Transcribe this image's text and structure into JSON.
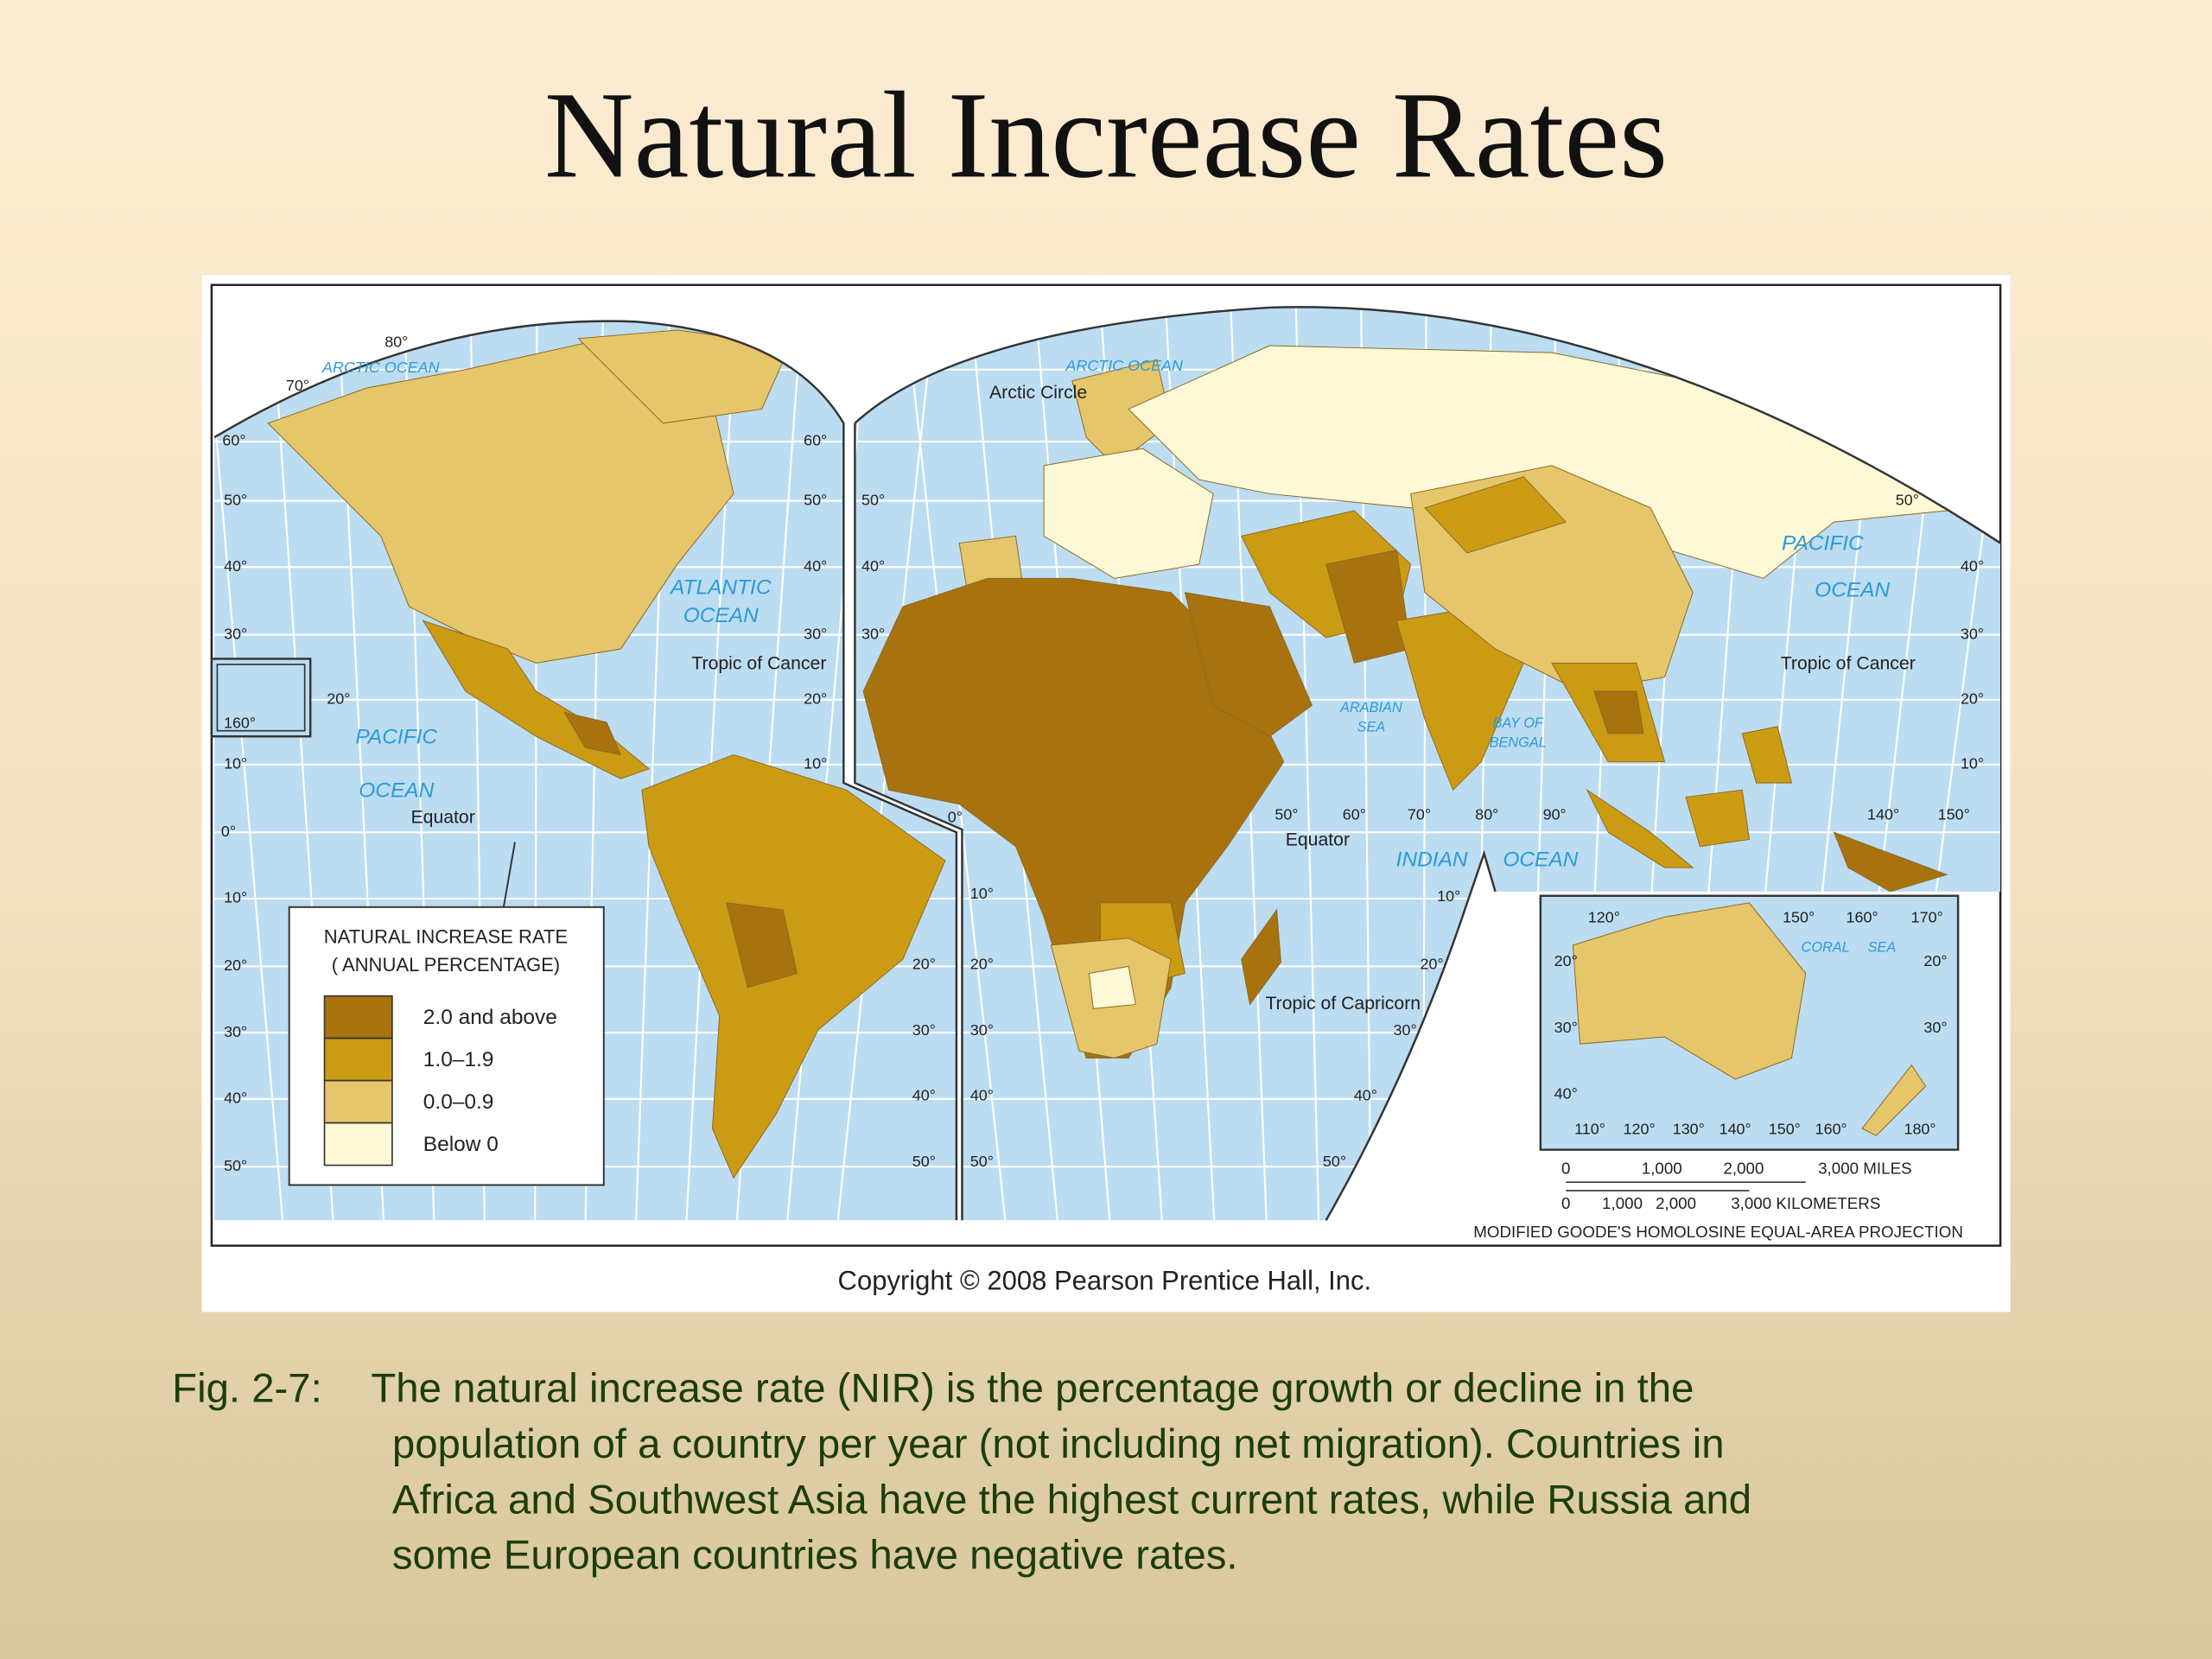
{
  "title": "Natural Increase Rates",
  "map": {
    "oceans": [
      "ARCTIC OCEAN",
      "ARCTIC OCEAN",
      "ATLANTIC",
      "OCEAN",
      "PACIFIC",
      "OCEAN",
      "PACIFIC",
      "OCEAN",
      "ARABIAN",
      "SEA",
      "BAY OF",
      "BENGAL",
      "INDIAN",
      "OCEAN",
      "CORAL",
      "SEA"
    ],
    "reference_lines": [
      "Arctic Circle",
      "Tropic of Cancer",
      "Tropic of Cancer",
      "Equator",
      "Equator",
      "Tropic of Capricorn"
    ],
    "degrees": [
      "80°",
      "70°",
      "60°",
      "50°",
      "40°",
      "30°",
      "20°",
      "160°",
      "10°",
      "0°",
      "10°",
      "20°",
      "30°",
      "40°",
      "50°",
      "60°",
      "50°",
      "40°",
      "30°",
      "20°",
      "10°",
      "20°",
      "30°",
      "40°",
      "50°",
      "50°",
      "40°",
      "30°",
      "0°",
      "10°",
      "20°",
      "30°",
      "40°",
      "50°",
      "50°",
      "60°",
      "70°",
      "80°",
      "90°",
      "140°",
      "150°",
      "50°",
      "40°",
      "30°",
      "20°",
      "10°",
      "10°",
      "20°",
      "30°",
      "40°",
      "50°",
      "120°",
      "150°",
      "160°",
      "170°",
      "20°",
      "30°",
      "40°",
      "20°",
      "30°",
      "110°",
      "120°",
      "130°",
      "140°",
      "150°",
      "160°",
      "180°"
    ],
    "legend": {
      "title": [
        "NATURAL INCREASE RATE",
        "( ANNUAL PERCENTAGE)"
      ],
      "items": [
        {
          "label": "2.0 and above",
          "color": "#a8720f"
        },
        {
          "label": "1.0–1.9",
          "color": "#cc9b14"
        },
        {
          "label": "0.0–0.9",
          "color": "#e6c66a"
        },
        {
          "label": "Below 0",
          "color": "#fdf8d6"
        }
      ]
    },
    "scale": {
      "miles": [
        "0",
        "1,000",
        "2,000",
        "3,000 MILES"
      ],
      "kilometers": [
        "0",
        "1,000",
        "2,000",
        "3,000 KILOMETERS"
      ]
    },
    "projection": "MODIFIED GOODE'S HOMOLOSINE EQUAL-AREA PROJECTION",
    "copyright": "Copyright © 2008 Pearson Prentice Hall, Inc."
  },
  "caption": {
    "label": "Fig. 2-7:",
    "lines": [
      "The natural increase rate (NIR) is the percentage growth or decline in the",
      "population of a country per year (not including net migration).  Countries in",
      "Africa and Southwest Asia have the highest current rates, while Russia and",
      "some European countries have negative rates."
    ]
  }
}
